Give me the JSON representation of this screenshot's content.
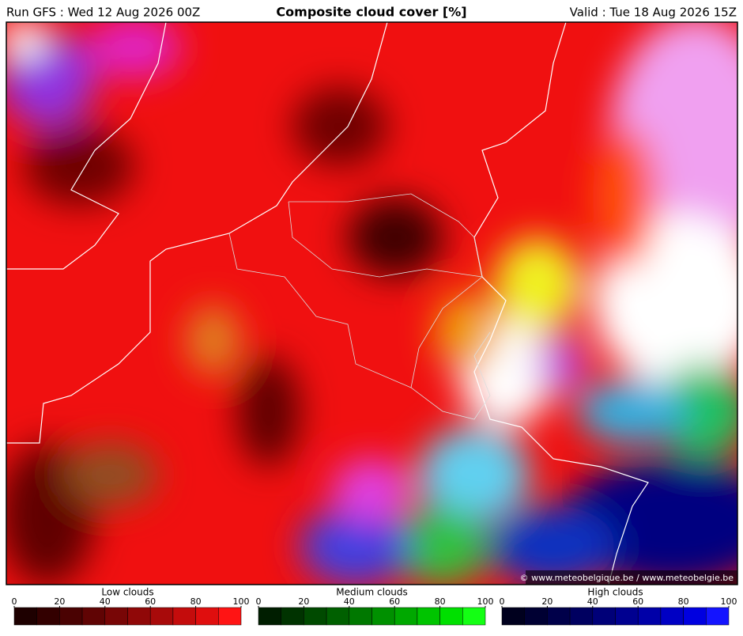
{
  "header": {
    "run": "Run GFS : Wed 12 Aug 2026 00Z",
    "title": "Composite cloud cover [%]",
    "valid": "Valid : Tue 18 Aug 2026 15Z"
  },
  "credit": "© www.meteobelgique.be / www.meteobelgie.be",
  "legends": [
    {
      "title": "Low clouds",
      "lim": [
        0,
        100
      ],
      "ticks": [
        0,
        20,
        40,
        60,
        80,
        100
      ],
      "colors": [
        "#1e0000",
        "#330000",
        "#4a0202",
        "#600404",
        "#780606",
        "#900808",
        "#a80a0a",
        "#c40c0c",
        "#e00e0e",
        "#ff1414"
      ]
    },
    {
      "title": "Medium clouds",
      "lim": [
        0,
        100
      ],
      "ticks": [
        0,
        20,
        40,
        60,
        80,
        100
      ],
      "colors": [
        "#001e00",
        "#003300",
        "#004a00",
        "#006000",
        "#007800",
        "#009000",
        "#00a800",
        "#00c400",
        "#00e000",
        "#14ff14"
      ]
    },
    {
      "title": "High clouds",
      "lim": [
        0,
        100
      ],
      "ticks": [
        0,
        20,
        40,
        60,
        80,
        100
      ],
      "colors": [
        "#00001e",
        "#000033",
        "#00004a",
        "#000060",
        "#000078",
        "#000090",
        "#0000a8",
        "#0000c4",
        "#0000e0",
        "#1414ff"
      ]
    }
  ]
}
